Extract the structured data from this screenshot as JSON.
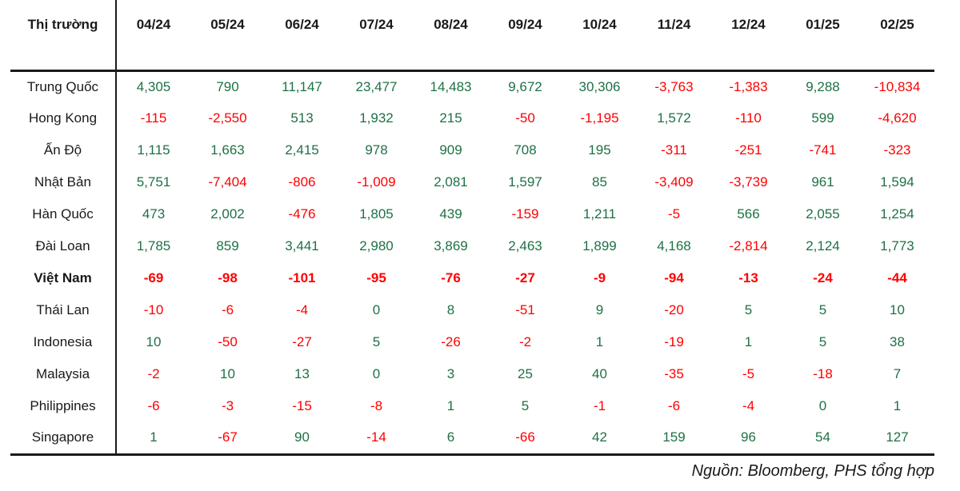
{
  "chart_data": {
    "type": "table",
    "corner_label": "Thị trường",
    "categories": [
      "04/24",
      "05/24",
      "06/24",
      "07/24",
      "08/24",
      "09/24",
      "10/24",
      "11/24",
      "12/24",
      "01/25",
      "02/25"
    ],
    "series": [
      {
        "name": "Trung Quốc",
        "bold": false,
        "display": [
          "4,305",
          "790",
          "11,147",
          "23,477",
          "14,483",
          "9,672",
          "30,306",
          "-3,763",
          "-1,383",
          "9,288",
          "-10,834"
        ],
        "values": [
          4305,
          790,
          11147,
          23477,
          14483,
          9672,
          30306,
          -3763,
          -1383,
          9288,
          -10834
        ]
      },
      {
        "name": "Hong Kong",
        "bold": false,
        "display": [
          "-115",
          "-2,550",
          "513",
          "1,932",
          "215",
          "-50",
          "-1,195",
          "1,572",
          "-110",
          "599",
          "-4,620"
        ],
        "values": [
          -115,
          -2550,
          513,
          1932,
          215,
          -50,
          -1195,
          1572,
          -110,
          599,
          -4620
        ]
      },
      {
        "name": "Ấn Độ",
        "bold": false,
        "display": [
          "1,115",
          "1,663",
          "2,415",
          "978",
          "909",
          "708",
          "195",
          "-311",
          "-251",
          "-741",
          "-323"
        ],
        "values": [
          1115,
          1663,
          2415,
          978,
          909,
          708,
          195,
          -311,
          -251,
          -741,
          -323
        ]
      },
      {
        "name": "Nhật Bản",
        "bold": false,
        "display": [
          "5,751",
          "-7,404",
          "-806",
          "-1,009",
          "2,081",
          "1,597",
          "85",
          "-3,409",
          "-3,739",
          "961",
          "1,594"
        ],
        "values": [
          5751,
          -7404,
          -806,
          -1009,
          2081,
          1597,
          85,
          -3409,
          -3739,
          961,
          1594
        ]
      },
      {
        "name": "Hàn Quốc",
        "bold": false,
        "display": [
          "473",
          "2,002",
          "-476",
          "1,805",
          "439",
          "-159",
          "1,211",
          "-5",
          "566",
          "2,055",
          "1,254"
        ],
        "values": [
          473,
          2002,
          -476,
          1805,
          439,
          -159,
          1211,
          -5,
          566,
          2055,
          1254
        ]
      },
      {
        "name": "Đài Loan",
        "bold": false,
        "display": [
          "1,785",
          "859",
          "3,441",
          "2,980",
          "3,869",
          "2,463",
          "1,899",
          "4,168",
          "-2,814",
          "2,124",
          "1,773"
        ],
        "values": [
          1785,
          859,
          3441,
          2980,
          3869,
          2463,
          1899,
          4168,
          -2814,
          2124,
          1773
        ]
      },
      {
        "name": "Việt Nam",
        "bold": true,
        "display": [
          "-69",
          "-98",
          "-101",
          "-95",
          "-76",
          "-27",
          "-9",
          "-94",
          "-13",
          "-24",
          "-44"
        ],
        "values": [
          -69,
          -98,
          -101,
          -95,
          -76,
          -27,
          -9,
          -94,
          -13,
          -24,
          -44
        ]
      },
      {
        "name": "Thái Lan",
        "bold": false,
        "display": [
          "-10",
          "-6",
          "-4",
          "0",
          "8",
          "-51",
          "9",
          "-20",
          "5",
          "5",
          "10"
        ],
        "values": [
          -10,
          -6,
          -4,
          0,
          8,
          -51,
          9,
          -20,
          5,
          5,
          10
        ]
      },
      {
        "name": "Indonesia",
        "bold": false,
        "display": [
          "10",
          "-50",
          "-27",
          "5",
          "-26",
          "-2",
          "1",
          "-19",
          "1",
          "5",
          "38"
        ],
        "values": [
          10,
          -50,
          -27,
          5,
          -26,
          -2,
          1,
          -19,
          1,
          5,
          38
        ]
      },
      {
        "name": "Malaysia",
        "bold": false,
        "display": [
          "-2",
          "10",
          "13",
          "0",
          "3",
          "25",
          "40",
          "-35",
          "-5",
          "-18",
          "7"
        ],
        "values": [
          -2,
          10,
          13,
          0,
          3,
          25,
          40,
          -35,
          -5,
          -18,
          7
        ]
      },
      {
        "name": "Philippines",
        "bold": false,
        "display": [
          "-6",
          "-3",
          "-15",
          "-8",
          "1",
          "5",
          "-1",
          "-6",
          "-4",
          "0",
          "1"
        ],
        "values": [
          -6,
          -3,
          -15,
          -8,
          1,
          5,
          -1,
          -6,
          -4,
          0,
          1
        ]
      },
      {
        "name": "Singapore",
        "bold": false,
        "display": [
          "1",
          "-67",
          "90",
          "-14",
          "6",
          "-66",
          "42",
          "159",
          "96",
          "54",
          "127"
        ],
        "values": [
          1,
          -67,
          90,
          -14,
          6,
          -66,
          42,
          159,
          96,
          54,
          127
        ]
      }
    ],
    "source_note": "Nguồn: Bloomberg, PHS tổng hợp"
  },
  "colors": {
    "positive": "#1E7145",
    "negative": "#FF0000",
    "text": "#1A1A1A"
  }
}
